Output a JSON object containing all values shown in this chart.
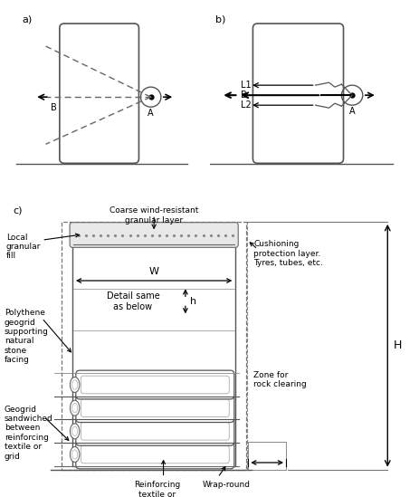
{
  "title_a": "a)",
  "title_b": "b)",
  "title_c": "c)",
  "label_A": "A",
  "label_B": "B",
  "label_L1": "L1",
  "label_L2": "L2",
  "label_W": "W",
  "label_h": "h",
  "label_H": "H",
  "text_coarse": "Coarse wind-resistant\ngranular layer",
  "text_local": "Local\ngranular\nfill",
  "text_polythene": "Polythene\ngeogrid\nsupporting\nnatural\nstone\nfacing",
  "text_geogrid": "Geogrid\nsandwiched\nbetween\nreinforcing\ntextile or\ngrid",
  "text_cushion": "Cushioning\nprotection layer.\nTyres, tubes, etc.",
  "text_reinforce": "Reinforcing\ntextile or\ngrid",
  "text_wrapround": "Wrap-round",
  "text_zone": "Zone for\nrock clearing",
  "text_detail": "Detail same\nas below"
}
